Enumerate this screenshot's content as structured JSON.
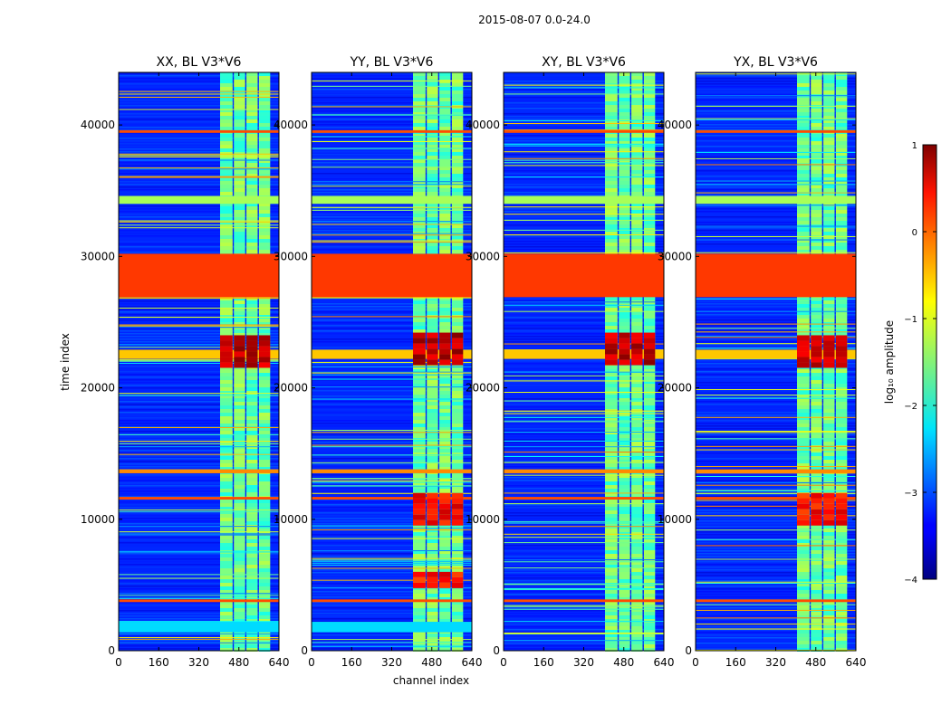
{
  "figure": {
    "suptitle": "2015-08-07 0.0-24.0",
    "xlabel": "channel index",
    "ylabel": "time index"
  },
  "colorbar": {
    "label": "log₁₀ amplitude",
    "ticks": [
      "1",
      "0",
      "−1",
      "−2",
      "−3",
      "−4"
    ],
    "tick_values": [
      1,
      0,
      -1,
      -2,
      -3,
      -4
    ],
    "range": [
      -4,
      1
    ],
    "colormap": "jet"
  },
  "chart_data": [
    {
      "type": "heatmap",
      "title": "XX, BL V3*V6",
      "xlabel": "channel index",
      "ylabel": "time index",
      "xlim": [
        0,
        640
      ],
      "ylim": [
        0,
        44000
      ],
      "xticks": [
        0,
        160,
        320,
        480,
        640
      ],
      "yticks": [
        0,
        10000,
        20000,
        30000,
        40000
      ],
      "xtick_labels": [
        "0",
        "160",
        "320",
        "480",
        "640"
      ],
      "ytick_labels": [
        "0",
        "10000",
        "20000",
        "30000",
        "40000"
      ],
      "background_value": -3.2,
      "bright_channel_bands": [
        [
          405,
          455
        ],
        [
          460,
          505
        ],
        [
          510,
          555
        ],
        [
          560,
          605
        ]
      ],
      "rfi_rows": [
        {
          "t0": 26900,
          "t1": 30200,
          "value": 0.1
        },
        {
          "t0": 34000,
          "t1": 34600,
          "value": -1.3
        },
        {
          "t0": 3700,
          "t1": 3900,
          "value": 0.0
        },
        {
          "t0": 11500,
          "t1": 11700,
          "value": 0.0
        },
        {
          "t0": 39400,
          "t1": 39600,
          "value": 0.0
        },
        {
          "t0": 13500,
          "t1": 13800,
          "value": -0.3
        },
        {
          "t0": 1400,
          "t1": 2200,
          "value": -2.3
        },
        {
          "t0": 22200,
          "t1": 22900,
          "value": -0.6
        }
      ],
      "hot_blocks": [
        {
          "c0": 400,
          "c1": 610,
          "t0": 21800,
          "t1": 24000,
          "value": 0.7
        }
      ]
    },
    {
      "type": "heatmap",
      "title": "YY, BL V3*V6",
      "xlabel": "channel index",
      "ylabel": "time index",
      "xlim": [
        0,
        640
      ],
      "ylim": [
        0,
        44000
      ],
      "xticks": [
        0,
        160,
        320,
        480,
        640
      ],
      "yticks": [
        0,
        10000,
        20000,
        30000,
        40000
      ],
      "xtick_labels": [
        "0",
        "160",
        "320",
        "480",
        "640"
      ],
      "ytick_labels": [
        "0",
        "10000",
        "20000",
        "30000",
        "40000"
      ],
      "background_value": -3.2,
      "bright_channel_bands": [
        [
          405,
          455
        ],
        [
          460,
          505
        ],
        [
          510,
          555
        ],
        [
          560,
          605
        ]
      ],
      "rfi_rows": [
        {
          "t0": 26900,
          "t1": 30200,
          "value": 0.1
        },
        {
          "t0": 34000,
          "t1": 34600,
          "value": -1.3
        },
        {
          "t0": 3700,
          "t1": 3900,
          "value": 0.0
        },
        {
          "t0": 11500,
          "t1": 11700,
          "value": 0.0
        },
        {
          "t0": 39400,
          "t1": 39600,
          "value": 0.0
        },
        {
          "t0": 13500,
          "t1": 13800,
          "value": -0.3
        },
        {
          "t0": 1400,
          "t1": 2200,
          "value": -2.3
        },
        {
          "t0": 22200,
          "t1": 22900,
          "value": -0.6
        }
      ],
      "hot_blocks": [
        {
          "c0": 400,
          "c1": 610,
          "t0": 21800,
          "t1": 24200,
          "value": 0.7
        },
        {
          "c0": 400,
          "c1": 610,
          "t0": 9800,
          "t1": 12000,
          "value": 0.4
        },
        {
          "c0": 400,
          "c1": 610,
          "t0": 5000,
          "t1": 6000,
          "value": 0.3
        }
      ]
    },
    {
      "type": "heatmap",
      "title": "XY, BL V3*V6",
      "xlabel": "channel index",
      "ylabel": "time index",
      "xlim": [
        0,
        640
      ],
      "ylim": [
        0,
        44000
      ],
      "xticks": [
        0,
        160,
        320,
        480,
        640
      ],
      "yticks": [
        0,
        10000,
        20000,
        30000,
        40000
      ],
      "xtick_labels": [
        "0",
        "160",
        "320",
        "480",
        "640"
      ],
      "ytick_labels": [
        "0",
        "10000",
        "20000",
        "30000",
        "40000"
      ],
      "background_value": -3.2,
      "bright_channel_bands": [
        [
          405,
          455
        ],
        [
          460,
          505
        ],
        [
          510,
          555
        ],
        [
          560,
          605
        ]
      ],
      "rfi_rows": [
        {
          "t0": 26900,
          "t1": 30200,
          "value": 0.1
        },
        {
          "t0": 34000,
          "t1": 34600,
          "value": -1.3
        },
        {
          "t0": 3700,
          "t1": 3900,
          "value": 0.0
        },
        {
          "t0": 11500,
          "t1": 11700,
          "value": 0.0
        },
        {
          "t0": 39400,
          "t1": 39600,
          "value": 0.0
        },
        {
          "t0": 13500,
          "t1": 13800,
          "value": -0.3
        },
        {
          "t0": 22200,
          "t1": 22900,
          "value": -0.6
        }
      ],
      "hot_blocks": [
        {
          "c0": 400,
          "c1": 610,
          "t0": 21800,
          "t1": 24200,
          "value": 0.7
        }
      ]
    },
    {
      "type": "heatmap",
      "title": "YX, BL V3*V6",
      "xlabel": "channel index",
      "ylabel": "time index",
      "xlim": [
        0,
        640
      ],
      "ylim": [
        0,
        44000
      ],
      "xticks": [
        0,
        160,
        320,
        480,
        640
      ],
      "yticks": [
        0,
        10000,
        20000,
        30000,
        40000
      ],
      "xtick_labels": [
        "0",
        "160",
        "320",
        "480",
        "640"
      ],
      "ytick_labels": [
        "0",
        "10000",
        "20000",
        "30000",
        "40000"
      ],
      "background_value": -3.2,
      "bright_channel_bands": [
        [
          405,
          455
        ],
        [
          460,
          505
        ],
        [
          510,
          555
        ],
        [
          560,
          605
        ]
      ],
      "rfi_rows": [
        {
          "t0": 26900,
          "t1": 30200,
          "value": 0.1
        },
        {
          "t0": 34000,
          "t1": 34600,
          "value": -1.3
        },
        {
          "t0": 3700,
          "t1": 3900,
          "value": 0.0
        },
        {
          "t0": 11500,
          "t1": 11700,
          "value": 0.0
        },
        {
          "t0": 39400,
          "t1": 39600,
          "value": 0.0
        },
        {
          "t0": 13500,
          "t1": 13800,
          "value": -0.3
        },
        {
          "t0": 22200,
          "t1": 22900,
          "value": -0.6
        }
      ],
      "hot_blocks": [
        {
          "c0": 400,
          "c1": 610,
          "t0": 21800,
          "t1": 24000,
          "value": 0.7
        },
        {
          "c0": 400,
          "c1": 610,
          "t0": 9800,
          "t1": 12000,
          "value": 0.3
        }
      ]
    }
  ]
}
